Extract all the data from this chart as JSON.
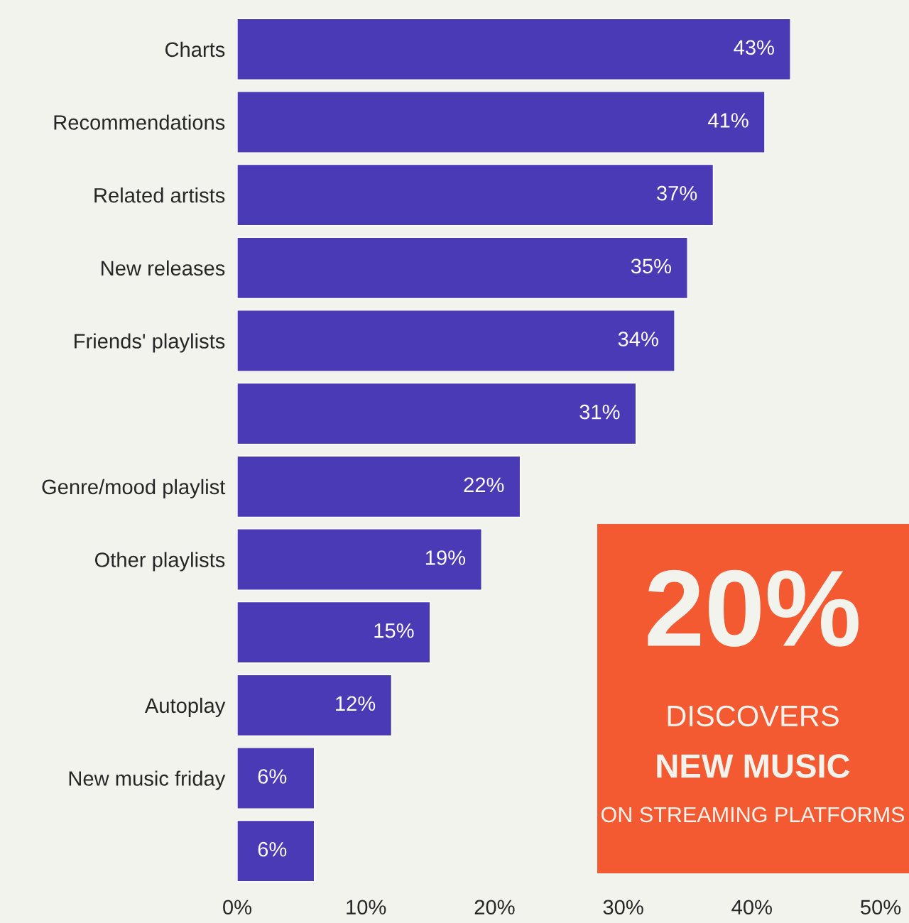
{
  "chart_data": {
    "type": "bar",
    "orientation": "horizontal",
    "categories": [
      "Charts",
      "Recommendations",
      "Related artists",
      "New releases",
      "Friends' playlists",
      null,
      "Genre/mood playlist",
      "Other playlists",
      null,
      "Autoplay",
      "New music friday",
      null
    ],
    "values": [
      43,
      41,
      37,
      35,
      34,
      31,
      22,
      19,
      15,
      12,
      6,
      6
    ],
    "color": "#4b3ab5",
    "xlim": [
      0,
      50
    ],
    "xticks": [
      {
        "value": 0,
        "label": "0%"
      },
      {
        "value": 10,
        "label": "10%"
      },
      {
        "value": 20,
        "label": "20%"
      },
      {
        "value": 30,
        "label": "30%"
      },
      {
        "value": 40,
        "label": "40%"
      },
      {
        "value": 50,
        "label": "50%"
      }
    ],
    "value_labels": [
      "43%",
      "41%",
      "37%",
      "35%",
      "34%",
      "31%",
      "22%",
      "19%",
      "15%",
      "12%",
      "6%",
      "6%"
    ],
    "grid": false,
    "annotations": [
      "20%",
      "DISCOVERS",
      "NEW MUSIC",
      "ON STREAMING PLATFORMS"
    ]
  }
}
